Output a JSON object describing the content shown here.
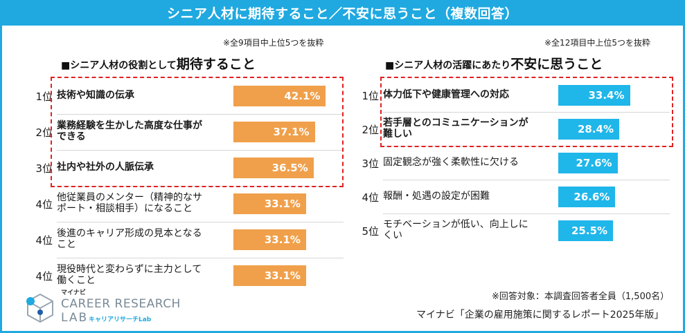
{
  "header": {
    "title": "シニア人材に期待すること／不安に思うこと（複数回答）"
  },
  "colors": {
    "header_bg": "#1fa9e0",
    "left_bar": "#f0a04b",
    "right_bar": "#1fb6ea",
    "highlight": "#e02020"
  },
  "left": {
    "note": "※全9項目中上位5つを抜粋",
    "title_prefix": "■シニア人材の役割として",
    "title_emph": "期待すること"
  },
  "right": {
    "note": "※全12項目中上位5つを抜粋",
    "title_prefix": "■シニア人材の活躍にあたり",
    "title_emph": "不安に思うこと"
  },
  "chart_data": [
    {
      "type": "bar",
      "title": "■シニア人材の役割として期待すること",
      "unit": "%",
      "categories": [
        "技術や知識の伝承",
        "業務経験を生かした高度な仕事ができる",
        "社内や社外の人脈伝承",
        "他従業員のメンター（精神的なサポート・相談相手）になること",
        "後進のキャリア形成の見本となること",
        "現役時代と変わらずに主力として働くこと"
      ],
      "ranks": [
        "1位",
        "2位",
        "3位",
        "4位",
        "4位",
        "4位"
      ],
      "values": [
        42.1,
        37.1,
        36.5,
        33.1,
        33.1,
        33.1
      ],
      "value_labels": [
        "42.1%",
        "37.1%",
        "36.5%",
        "33.1%",
        "33.1%",
        "33.1%"
      ],
      "label_lines": [
        [
          "技術や知識の伝承"
        ],
        [
          "業務経験を生かした高度な仕事が",
          "できる"
        ],
        [
          "社内や社外の人脈伝承"
        ],
        [
          "他従業員のメンター（精神的なサ",
          "ポート・相談相手）になること"
        ],
        [
          "後進のキャリア形成の見本となる",
          "こと"
        ],
        [
          "現役時代と変わらずに主力として",
          "働くこと"
        ]
      ],
      "highlighted": [
        0,
        1,
        2
      ],
      "color": "#f0a04b"
    },
    {
      "type": "bar",
      "title": "■シニア人材の活躍にあたり不安に思うこと",
      "unit": "%",
      "categories": [
        "体力低下や健康管理への対応",
        "若手層とのコミュニケーションが難しい",
        "固定観念が強く柔軟性に欠ける",
        "報酬・処遇の設定が困難",
        "モチベーションが低い、向上しにくい"
      ],
      "ranks": [
        "1位",
        "2位",
        "3位",
        "4位",
        "5位"
      ],
      "values": [
        33.4,
        28.4,
        27.6,
        26.6,
        25.5
      ],
      "value_labels": [
        "33.4%",
        "28.4%",
        "27.6%",
        "26.6%",
        "25.5%"
      ],
      "label_lines": [
        [
          "体力低下や健康管理への対応"
        ],
        [
          "若手層とのコミュニケーションが",
          "難しい"
        ],
        [
          "固定観念が強く柔軟性に欠ける"
        ],
        [
          "報酬・処遇の設定が困難"
        ],
        [
          "モチベーションが低い、向上しに",
          "くい"
        ]
      ],
      "highlighted": [
        0,
        1
      ],
      "color": "#1fb6ea"
    }
  ],
  "logo": {
    "small": "マイナビ",
    "line1": "CAREER RESEARCH",
    "line2": "LAB",
    "sub": "キャリアリサーチLab"
  },
  "footer": {
    "respondents": "※回答対象：本調査回答者全員（1,500名）",
    "source": "マイナビ「企業の雇用施策に関するレポート2025年版」"
  }
}
